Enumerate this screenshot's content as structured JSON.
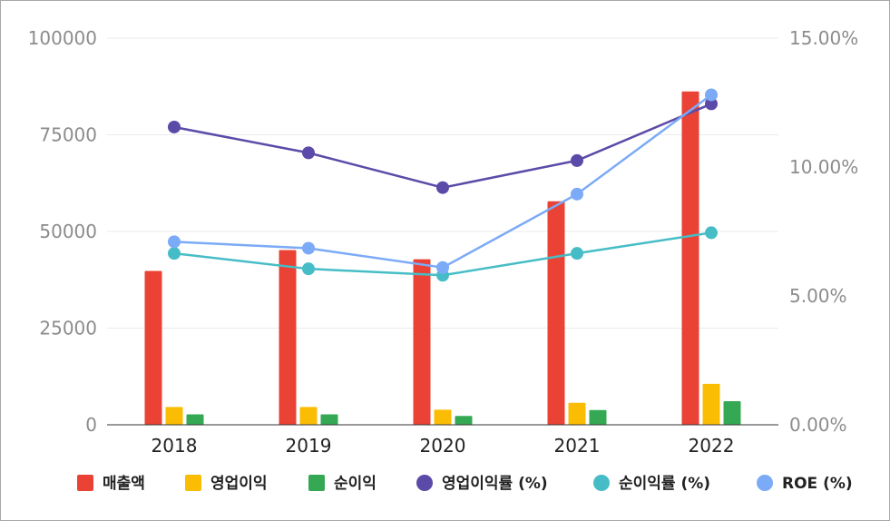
{
  "chart_data": {
    "type": "bar",
    "categories": [
      "2018",
      "2019",
      "2020",
      "2021",
      "2022"
    ],
    "bar_series": [
      {
        "name": "매출액",
        "color": "#ea4335",
        "values": [
          39800,
          45200,
          42800,
          57800,
          86200
        ]
      },
      {
        "name": "영업이익",
        "color": "#fbbc04",
        "values": [
          4600,
          4600,
          3900,
          5700,
          10600
        ]
      },
      {
        "name": "순이익",
        "color": "#34a853",
        "values": [
          2700,
          2700,
          2300,
          3800,
          6100
        ]
      }
    ],
    "line_series": [
      {
        "name": "영업이익률 (%)",
        "color": "#5c4aa8",
        "values": [
          11.55,
          10.55,
          9.2,
          10.25,
          12.45
        ]
      },
      {
        "name": "순이익률 (%)",
        "color": "#46bdc6",
        "values": [
          6.65,
          6.05,
          5.8,
          6.65,
          7.45
        ]
      },
      {
        "name": "ROE (%)",
        "color": "#7baaf7",
        "values": [
          7.1,
          6.85,
          6.1,
          8.95,
          12.8
        ]
      }
    ],
    "y_left": {
      "range": [
        0,
        100000
      ],
      "ticks": [
        "100000",
        "75000",
        "50000",
        "25000",
        "0"
      ],
      "tick_values": [
        100000,
        75000,
        50000,
        25000,
        0
      ]
    },
    "y_right": {
      "range": [
        0,
        15
      ],
      "ticks": [
        "15.00%",
        "10.00%",
        "5.00%",
        "0.00%"
      ],
      "tick_values": [
        15,
        10,
        5,
        0
      ]
    },
    "title": "",
    "xlabel": "",
    "ylabel": "",
    "grid": true,
    "legend_position": "bottom"
  }
}
